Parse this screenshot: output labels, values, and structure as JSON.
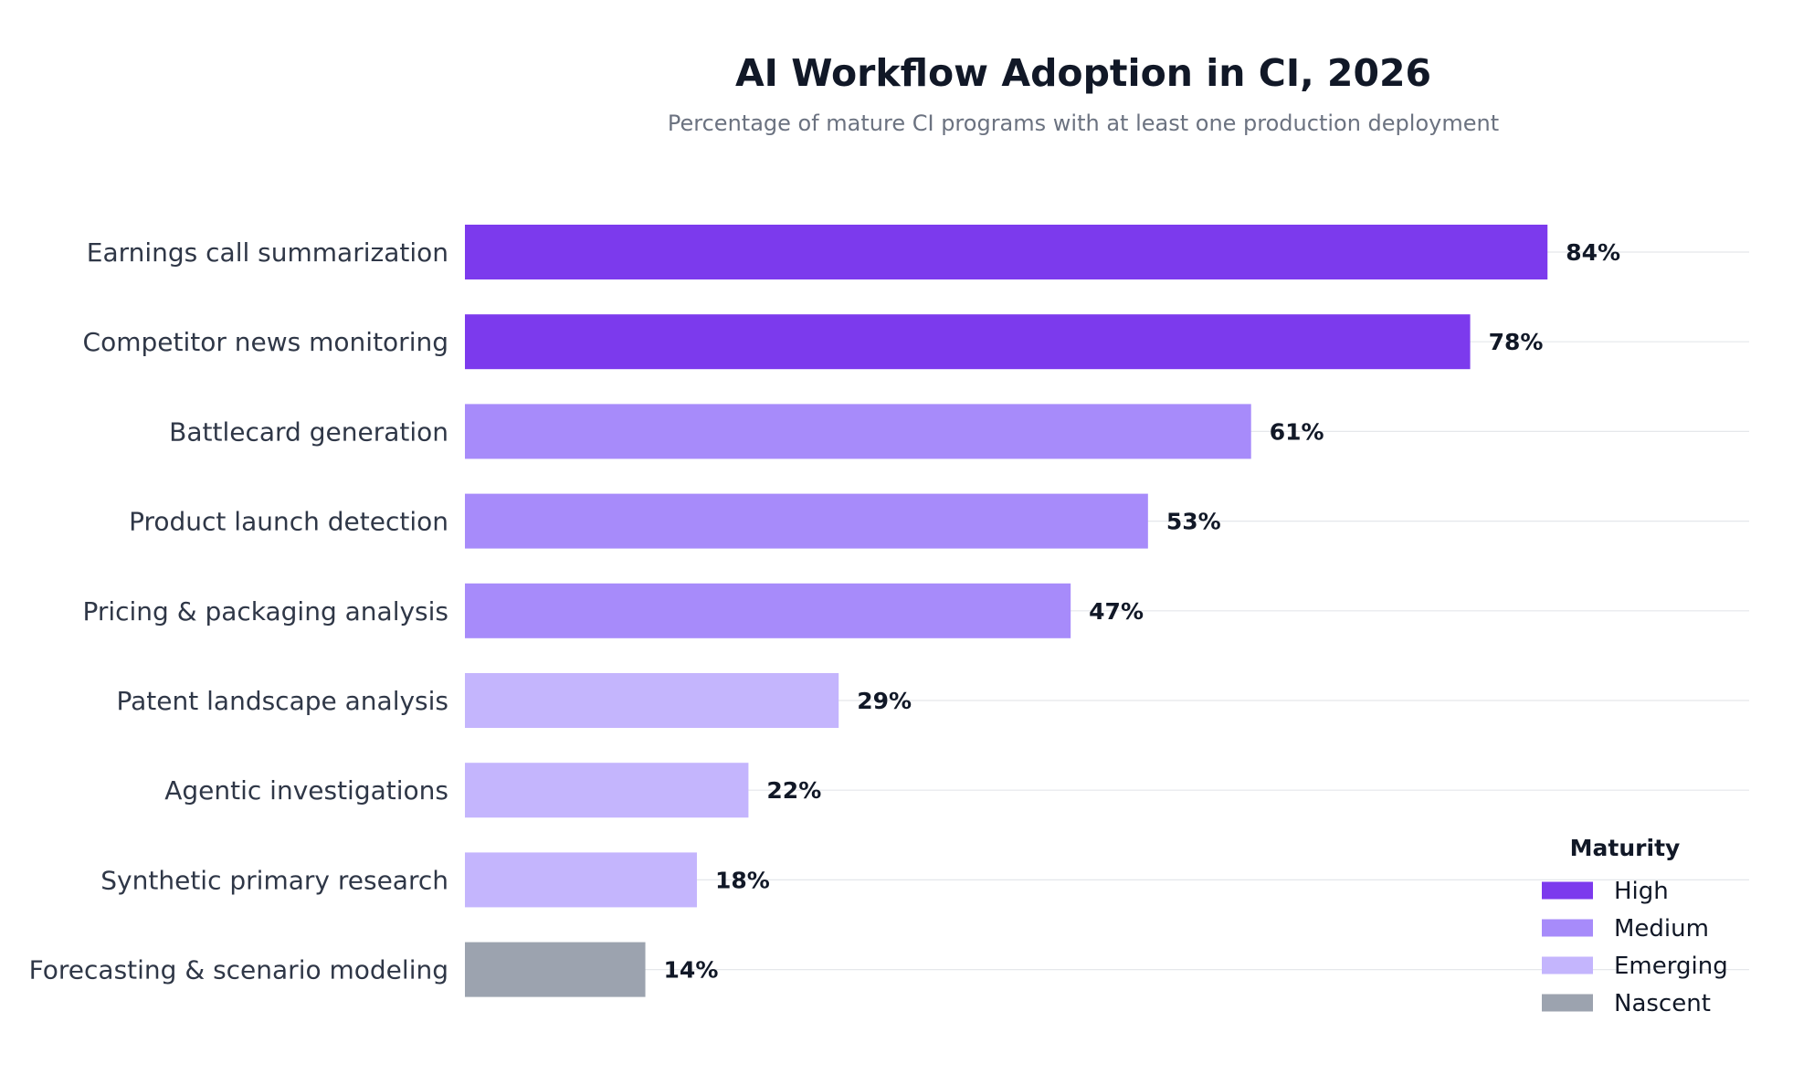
{
  "chart_data": {
    "type": "bar",
    "orientation": "horizontal",
    "title": "AI Workflow Adoption in CI, 2026",
    "subtitle": "Percentage of mature CI programs with at least one production deployment",
    "xlabel": "",
    "ylabel": "",
    "value_suffix": "%",
    "xlim": [
      0,
      100
    ],
    "grid": true,
    "categories": [
      "Earnings call summarization",
      "Competitor news monitoring",
      "Battlecard generation",
      "Product launch detection",
      "Pricing & packaging analysis",
      "Patent landscape analysis",
      "Agentic investigations",
      "Synthetic primary research",
      "Forecasting & scenario modeling"
    ],
    "values": [
      84,
      78,
      61,
      53,
      47,
      29,
      22,
      18,
      14
    ],
    "maturity": [
      "High",
      "High",
      "Medium",
      "Medium",
      "Medium",
      "Emerging",
      "Emerging",
      "Emerging",
      "Nascent"
    ],
    "legend": {
      "title": "Maturity",
      "placement": "bottom-right",
      "items": [
        {
          "label": "High",
          "color": "#7c3aed"
        },
        {
          "label": "Medium",
          "color": "#a78bfa"
        },
        {
          "label": "Emerging",
          "color": "#c4b5fd"
        },
        {
          "label": "Nascent",
          "color": "#9ca3af"
        }
      ]
    }
  }
}
